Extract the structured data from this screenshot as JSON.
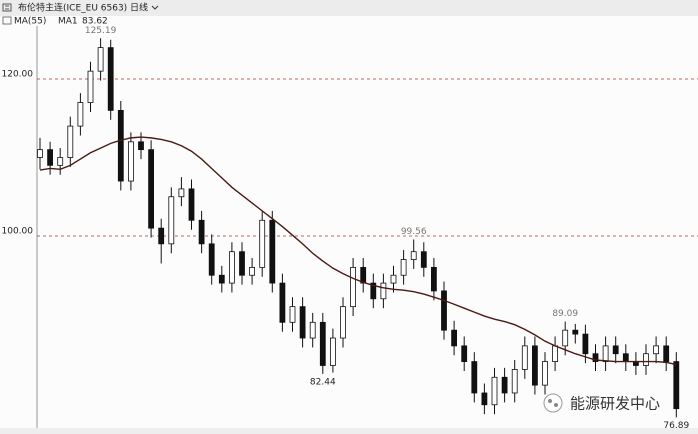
{
  "chart_data": {
    "type": "candlestick",
    "title": "布伦特主连(ICE_EU 6563)",
    "period": "日线",
    "indicator": "MA(55)",
    "open": [
      110,
      111,
      109,
      110,
      114,
      117,
      121,
      124,
      116,
      107,
      112,
      111,
      101,
      99,
      105,
      106,
      102,
      99,
      95,
      94,
      98,
      95,
      96,
      102,
      94,
      89,
      91,
      87,
      89,
      83.5,
      87,
      91,
      96,
      94,
      92,
      94,
      95,
      97,
      98,
      96,
      93,
      88,
      86,
      84,
      80,
      78.5,
      82,
      80,
      83,
      86,
      81,
      84,
      86,
      88,
      87.5,
      85,
      84,
      86,
      85,
      84,
      83.5,
      85,
      86,
      84
    ],
    "high": [
      112.5,
      112,
      111.2,
      115.2,
      118.2,
      122.2,
      125.19,
      125,
      117.2,
      113.2,
      113.2,
      112.2,
      102.2,
      106.2,
      107.5,
      107.2,
      103.2,
      100.2,
      96.2,
      99.2,
      99.2,
      97.2,
      103.2,
      103.2,
      95.2,
      92.2,
      92.2,
      90.2,
      90.2,
      88.2,
      92.2,
      97.2,
      97.2,
      95.2,
      95.2,
      96.2,
      98.2,
      99.56,
      99.2,
      97.2,
      94.2,
      89.2,
      87.2,
      85.2,
      81.2,
      83.2,
      83.2,
      84.2,
      87.2,
      87.2,
      85.2,
      87.2,
      89.09,
      88.8,
      88.7,
      86.2,
      87.2,
      87.2,
      86.2,
      85.2,
      86.2,
      87.2,
      87.2,
      85.2
    ],
    "low": [
      108.5,
      107.8,
      107.8,
      108.8,
      112.8,
      115.8,
      119.8,
      114.8,
      105.8,
      105.8,
      109.8,
      99.8,
      96.5,
      97.8,
      103.8,
      100.8,
      97.8,
      93.8,
      92.8,
      92.8,
      93.8,
      93.8,
      94.8,
      92.8,
      87.8,
      87.8,
      85.8,
      85.8,
      82.44,
      82.6,
      85.8,
      89.8,
      92.8,
      90.8,
      90.8,
      92.8,
      93.8,
      95.8,
      94.8,
      91.8,
      86.8,
      84.8,
      82.8,
      78.8,
      77.3,
      77.3,
      78.8,
      78.8,
      81.8,
      79.8,
      79.8,
      82.8,
      84.8,
      86.3,
      83.8,
      82.8,
      82.8,
      83.8,
      82.8,
      82.3,
      82.3,
      83.8,
      82.8,
      76.89
    ],
    "close": [
      111,
      109,
      110,
      114,
      117,
      121,
      124,
      116,
      107,
      112,
      111,
      101,
      99,
      105,
      106,
      102,
      99,
      95,
      94,
      98,
      95,
      96,
      102,
      94,
      89,
      91,
      87,
      89,
      83.5,
      87,
      91,
      96,
      94,
      92,
      94,
      95,
      97,
      98,
      96,
      93,
      88,
      86,
      84,
      80,
      78.5,
      82,
      80,
      83,
      86,
      81,
      84,
      86,
      88,
      87.5,
      85,
      84,
      86,
      85,
      84,
      83.5,
      85,
      86,
      84,
      78
    ],
    "ma": {
      "name": "MA1",
      "color": "#4a1a14",
      "values": [
        108.4,
        108.6,
        108.5,
        109,
        109.8,
        110.6,
        111.2,
        111.8,
        112.2,
        112.5,
        112.6,
        112.5,
        112.3,
        112,
        111.5,
        110.8,
        109.8,
        108.6,
        107.4,
        106.2,
        105.2,
        104.2,
        103.2,
        102.2,
        101.2,
        100.1,
        99,
        97.8,
        96.8,
        95.9,
        95.2,
        94.6,
        94.1,
        93.7,
        93.4,
        93.2,
        93.1,
        92.9,
        92.6,
        92.2,
        91.8,
        91.3,
        90.8,
        90.3,
        89.8,
        89.4,
        89.1,
        88.7,
        88.1,
        87.4,
        86.6,
        86,
        85.5,
        85,
        84.6,
        84.2,
        84.1,
        84,
        84,
        84,
        84,
        84,
        83.9,
        83.62
      ]
    },
    "up_color": "#ffffff",
    "down_color": "#111111",
    "grid_color": "#b03030",
    "ylim": [
      75.5,
      127.3
    ],
    "yticks": [
      {
        "value": 100,
        "label": "100.00"
      },
      {
        "value": 120,
        "label": "120.00"
      }
    ]
  },
  "watermark": "能源研发中心"
}
